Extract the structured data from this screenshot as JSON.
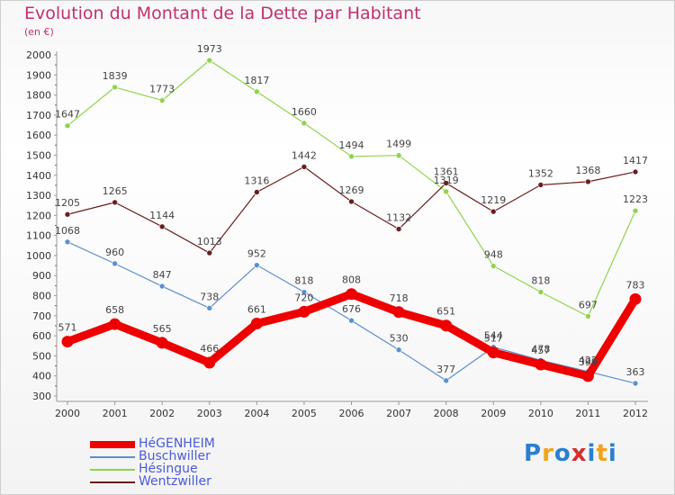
{
  "title": "Evolution du Montant de la Dette par Habitant",
  "subtitle": "(en €)",
  "logo": {
    "text": "Proxiti",
    "letters": [
      "P",
      "r",
      "o",
      "x",
      "i",
      "t",
      "i"
    ],
    "colors": [
      "#2a7fd0",
      "#f2a31a",
      "#2a7fd0",
      "#d62c2c",
      "#2a7fd0",
      "#f2a31a",
      "#2a7fd0"
    ]
  },
  "chart_data": {
    "type": "line",
    "title": "Evolution du Montant de la Dette par Habitant",
    "subtitle": "(en €)",
    "x": [
      "2000",
      "2001",
      "2002",
      "2003",
      "2004",
      "2005",
      "2006",
      "2007",
      "2008",
      "2009",
      "2010",
      "2011",
      "2012"
    ],
    "ylim": [
      300,
      2000
    ],
    "yticks": [
      300,
      400,
      500,
      600,
      700,
      800,
      900,
      1000,
      1100,
      1200,
      1300,
      1400,
      1500,
      1600,
      1700,
      1800,
      1900,
      2000
    ],
    "grid": false,
    "legend_position": "bottom-left",
    "series": [
      {
        "name": "Buschwiller",
        "color": "#5b8fd0",
        "width": 1.2,
        "values": [
          1068,
          960,
          847,
          738,
          952,
          818,
          676,
          530,
          377,
          544,
          478,
          422,
          363
        ]
      },
      {
        "name": "Hésingue",
        "color": "#8ed44a",
        "width": 1.2,
        "values": [
          1647,
          1839,
          1773,
          1973,
          1817,
          1660,
          1494,
          1499,
          1319,
          948,
          818,
          697,
          1223
        ]
      },
      {
        "name": "Wentzwiller",
        "color": "#6b1d1d",
        "width": 1.2,
        "values": [
          1205,
          1265,
          1144,
          1013,
          1316,
          1442,
          1269,
          1132,
          1361,
          1219,
          1352,
          1368,
          1417
        ]
      },
      {
        "name": "HéGENHEIM",
        "color": "#ee0000",
        "width": 9,
        "values": [
          571,
          658,
          565,
          466,
          661,
          720,
          808,
          718,
          651,
          517,
          457,
          399,
          783
        ]
      }
    ],
    "legend": [
      {
        "name": "HéGENHEIM",
        "color": "#ee0000",
        "thick": true
      },
      {
        "name": "Buschwiller",
        "color": "#5b8fd0",
        "thick": false
      },
      {
        "name": "Hésingue",
        "color": "#8ed44a",
        "thick": false
      },
      {
        "name": "Wentzwiller",
        "color": "#6b1d1d",
        "thick": false
      }
    ]
  }
}
